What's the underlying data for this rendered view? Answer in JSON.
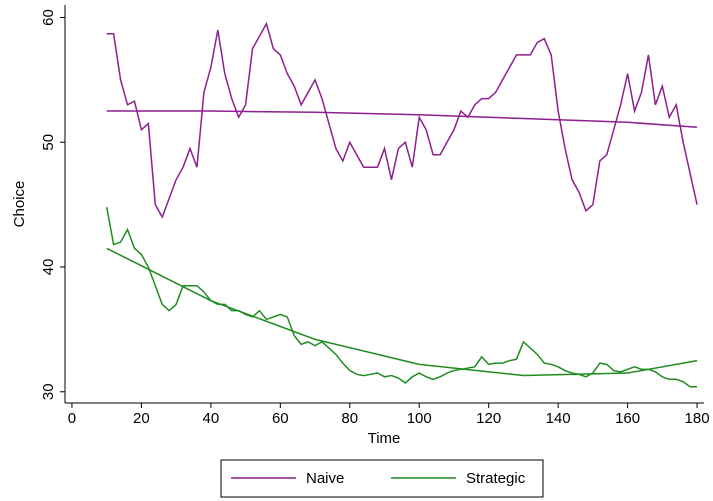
{
  "chart_data": {
    "type": "line",
    "x_label": "Time",
    "y_label": "Choice",
    "x": [
      10,
      12,
      14,
      16,
      18,
      20,
      22,
      24,
      26,
      28,
      30,
      32,
      34,
      36,
      38,
      40,
      42,
      44,
      46,
      48,
      50,
      52,
      54,
      56,
      58,
      60,
      62,
      64,
      66,
      68,
      70,
      72,
      74,
      76,
      78,
      80,
      82,
      84,
      86,
      88,
      90,
      92,
      94,
      96,
      98,
      100,
      102,
      104,
      106,
      108,
      110,
      112,
      114,
      116,
      118,
      120,
      122,
      124,
      126,
      128,
      130,
      132,
      134,
      136,
      138,
      140,
      142,
      144,
      146,
      148,
      150,
      152,
      154,
      156,
      158,
      160,
      162,
      164,
      166,
      168,
      170,
      172,
      174,
      176,
      178,
      180
    ],
    "series": [
      {
        "name": "Naive",
        "color": "#8e1f8e",
        "values": [
          58.7,
          58.7,
          55,
          53,
          53.3,
          51,
          51.5,
          45,
          44,
          45.5,
          47,
          48,
          49.5,
          48,
          54,
          56,
          59,
          55.5,
          53.5,
          52,
          53,
          57.5,
          58.5,
          59.5,
          57.5,
          57,
          55.5,
          54.5,
          53,
          54,
          55,
          53.5,
          51.5,
          49.5,
          48.5,
          50,
          49,
          48,
          48,
          48,
          49.5,
          47,
          49.5,
          50,
          48,
          52,
          51,
          49,
          49,
          50,
          51,
          52.5,
          52,
          53,
          53.5,
          53.5,
          54,
          55,
          56,
          57,
          57,
          57,
          58,
          58.3,
          57,
          52.5,
          49.5,
          47,
          46,
          44.5,
          45,
          48.5,
          49,
          51,
          53,
          55.5,
          52.5,
          54,
          57,
          53,
          54.5,
          52,
          53,
          50,
          47.5,
          45
        ],
        "fit": {
          "x": [
            10,
            40,
            70,
            100,
            130,
            160,
            180
          ],
          "values": [
            52.5,
            52.5,
            52.4,
            52.2,
            51.9,
            51.6,
            51.2
          ]
        }
      },
      {
        "name": "Strategic",
        "color": "#1f8c1f",
        "values": [
          44.8,
          41.8,
          42,
          43,
          41.5,
          41,
          40,
          38.5,
          37,
          36.5,
          37,
          38.5,
          38.5,
          38.5,
          38,
          37.3,
          37,
          37,
          36.5,
          36.5,
          36.2,
          36,
          36.5,
          35.8,
          36,
          36.2,
          36,
          34.5,
          33.8,
          34,
          33.7,
          34,
          33.5,
          33,
          32.3,
          31.7,
          31.4,
          31.3,
          31.4,
          31.5,
          31.2,
          31.3,
          31.1,
          30.7,
          31.2,
          31.5,
          31.2,
          31,
          31.2,
          31.5,
          31.7,
          31.8,
          31.9,
          32,
          32.8,
          32.2,
          32.3,
          32.3,
          32.5,
          32.6,
          34,
          33.5,
          33,
          32.3,
          32.2,
          32,
          31.7,
          31.5,
          31.4,
          31.2,
          31.5,
          32.3,
          32.2,
          31.7,
          31.6,
          31.8,
          32,
          31.8,
          31.8,
          31.6,
          31.2,
          31,
          31,
          30.8,
          30.4,
          30.4
        ],
        "fit": {
          "x": [
            10,
            40,
            70,
            100,
            130,
            160,
            180
          ],
          "values": [
            41.5,
            37.3,
            34.2,
            32.2,
            31.3,
            31.5,
            32.5
          ]
        }
      }
    ],
    "xlim": [
      -2,
      182
    ],
    "xticks": [
      0,
      20,
      40,
      60,
      80,
      100,
      120,
      140,
      160,
      180
    ],
    "ylim": [
      29.1,
      61
    ],
    "yticks": [
      30,
      40,
      50,
      60
    ],
    "grid": false,
    "legend": "bottom"
  }
}
